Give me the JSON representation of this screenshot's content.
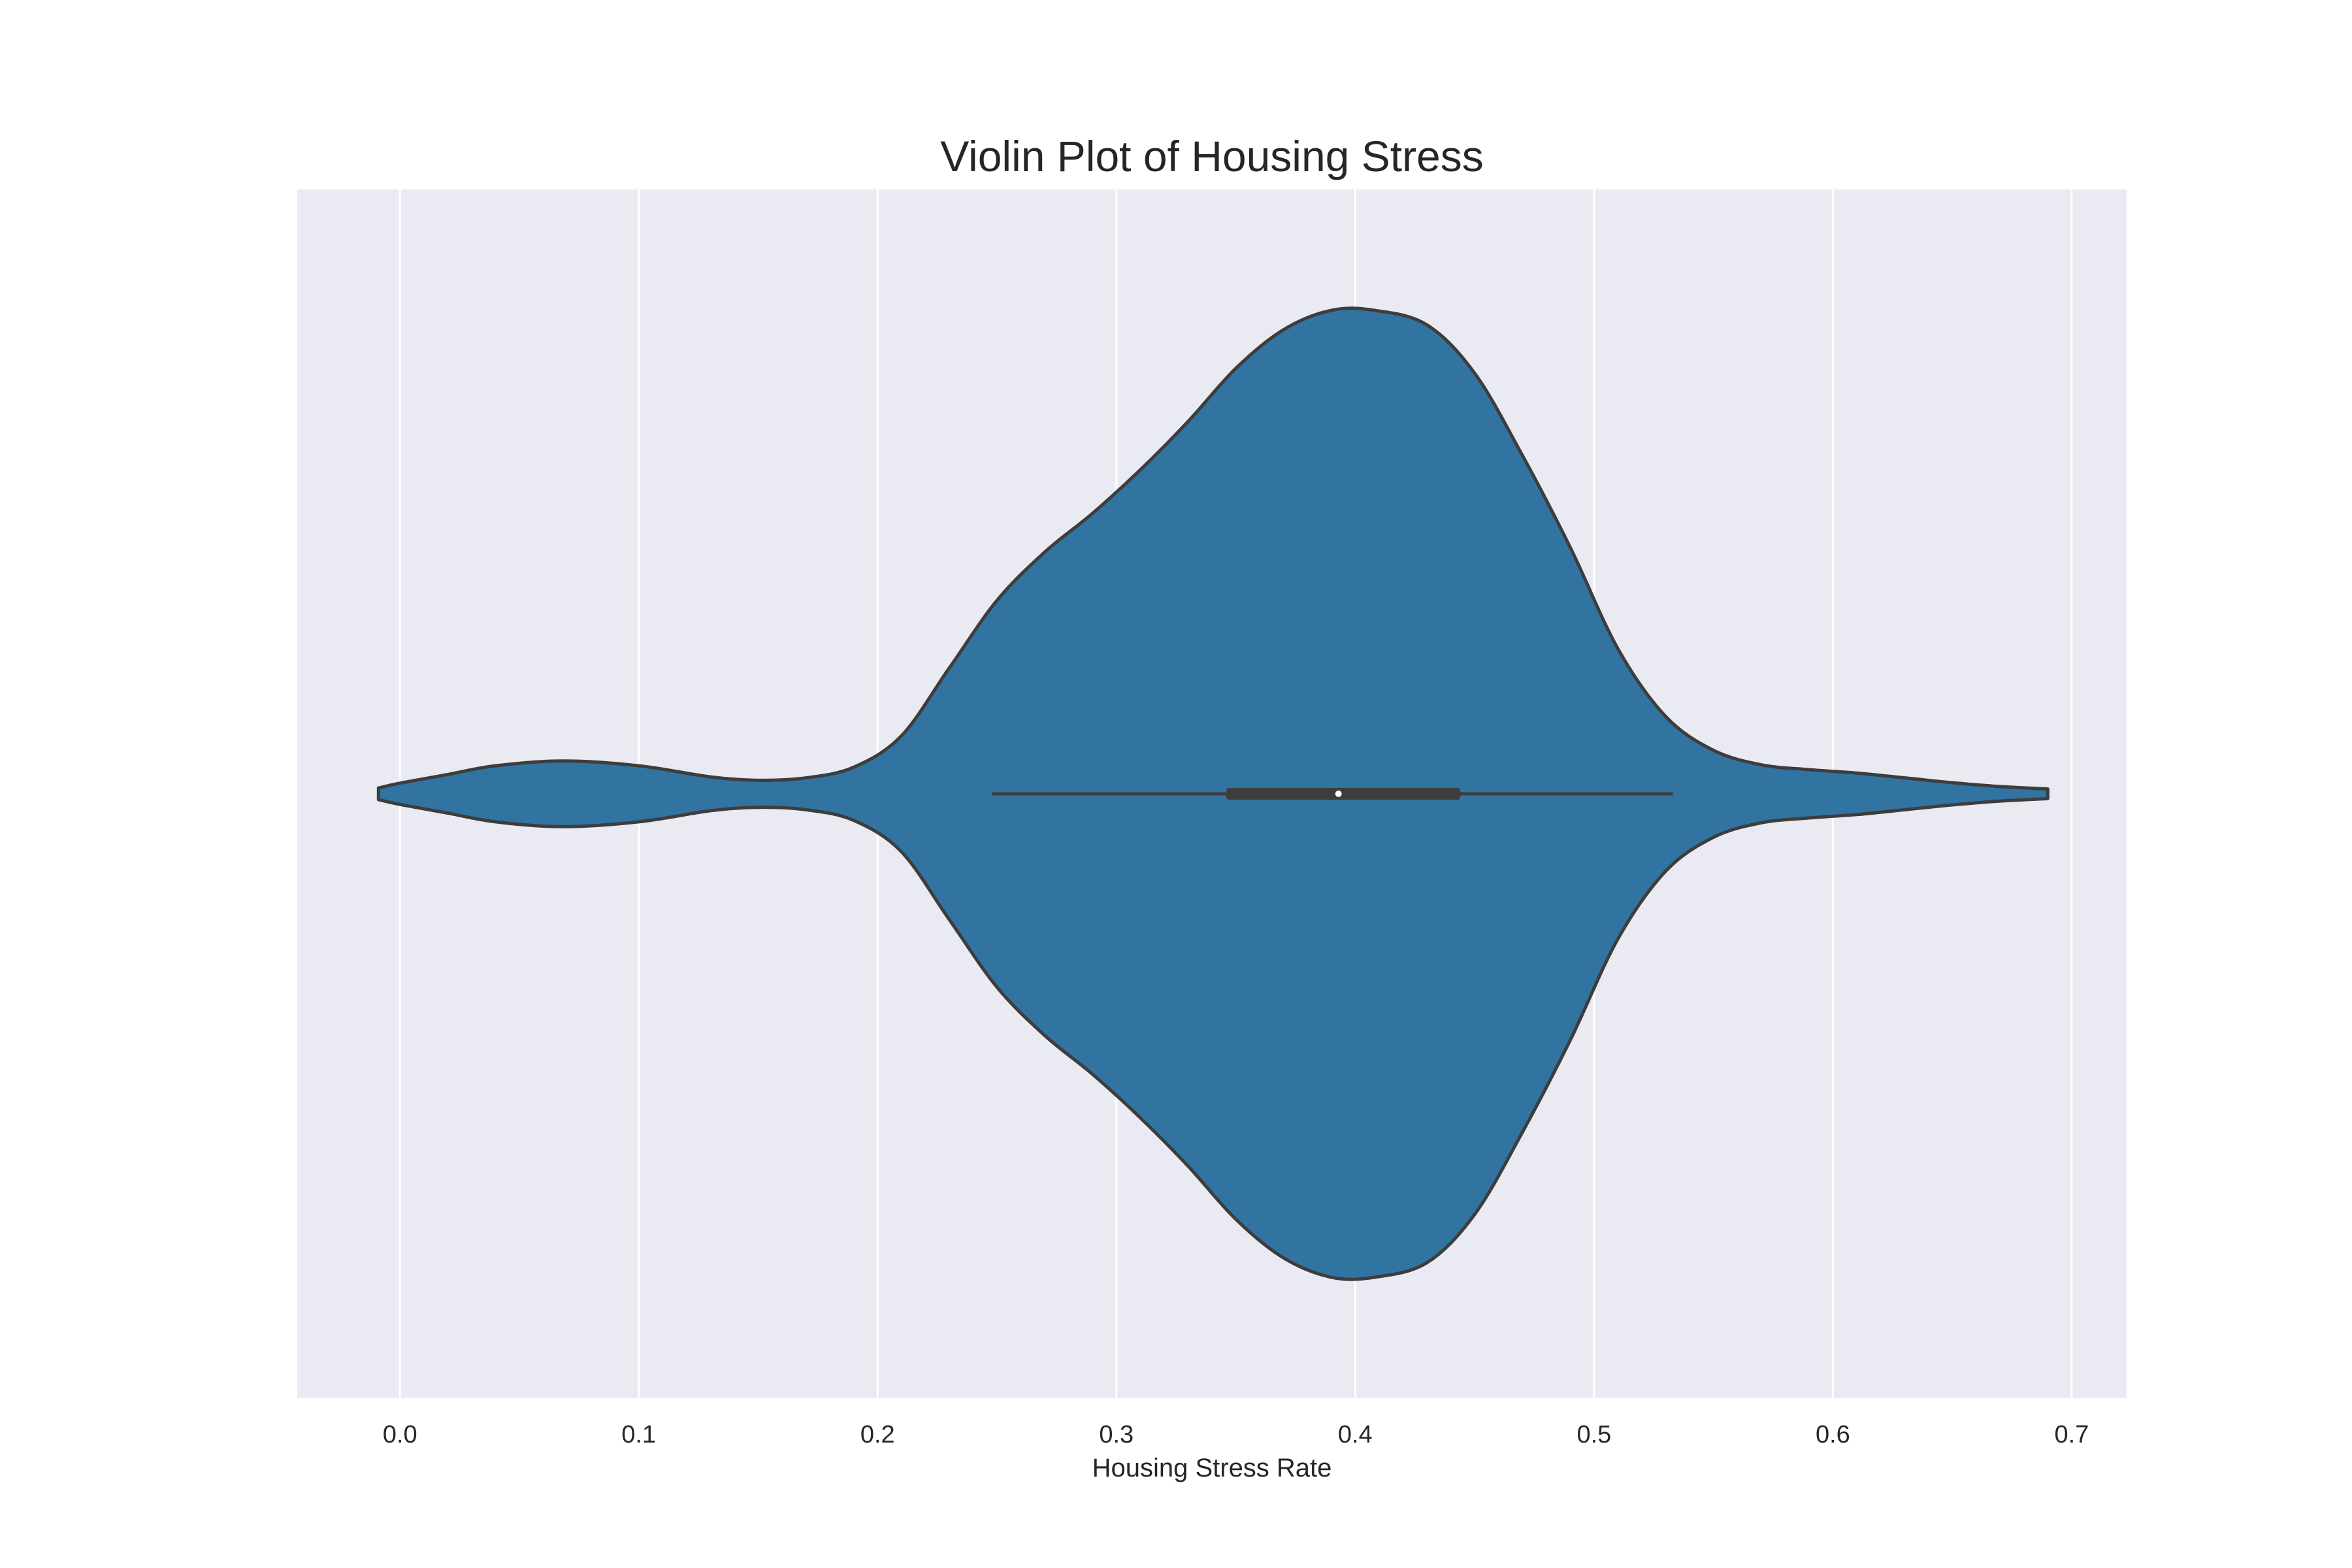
{
  "chart_data": {
    "type": "violin",
    "title": "Violin Plot of Housing Stress",
    "xlabel": "Housing Stress Rate",
    "ylabel": "",
    "xlim": [
      -0.043,
      0.723
    ],
    "xticks": [
      0.0,
      0.1,
      0.2,
      0.3,
      0.4,
      0.5,
      0.6,
      0.7
    ],
    "xtick_labels": [
      "0.0",
      "0.1",
      "0.2",
      "0.3",
      "0.4",
      "0.5",
      "0.6",
      "0.7"
    ],
    "grid": true,
    "orientation": "horizontal",
    "series": [
      {
        "kde_x": [
          -0.009,
          0.0,
          0.02,
          0.04,
          0.068,
          0.1,
          0.13,
          0.15,
          0.17,
          0.19,
          0.21,
          0.23,
          0.25,
          0.27,
          0.29,
          0.31,
          0.33,
          0.35,
          0.37,
          0.39,
          0.408,
          0.43,
          0.45,
          0.47,
          0.49,
          0.51,
          0.53,
          0.55,
          0.57,
          0.59,
          0.61,
          0.63,
          0.65,
          0.67,
          0.69
        ],
        "kde_density": [
          0.012,
          0.022,
          0.04,
          0.058,
          0.068,
          0.058,
          0.035,
          0.028,
          0.033,
          0.055,
          0.12,
          0.26,
          0.4,
          0.5,
          0.58,
          0.67,
          0.77,
          0.88,
          0.96,
          1.0,
          1.0,
          0.97,
          0.87,
          0.7,
          0.51,
          0.3,
          0.16,
          0.09,
          0.06,
          0.05,
          0.043,
          0.033,
          0.023,
          0.015,
          0.01
        ],
        "whisker_low": 0.248,
        "q1": 0.346,
        "median": 0.393,
        "q3": 0.444,
        "whisker_high": 0.533
      }
    ],
    "colors": {
      "violin_fill": "#3274a1",
      "violin_edge": "#3d3d3d",
      "plot_background": "#eaeaf2",
      "grid": "#ffffff",
      "box": "#3d3d3d",
      "median_dot": "#ffffff"
    }
  }
}
